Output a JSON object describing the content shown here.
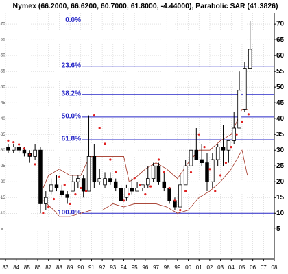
{
  "chart_data": {
    "type": "candlestick",
    "title": "Nymex (66.2000, 66.6200, 60.7000, 61.8000, -4.44000), Parabolic SAR (41.3826)",
    "x": [
      1983.25,
      1983.75,
      1984.25,
      1984.75,
      1985.25,
      1985.75,
      1986.25,
      1986.75,
      1987.25,
      1987.75,
      1988.25,
      1988.75,
      1989.25,
      1989.75,
      1990.25,
      1990.75,
      1991.25,
      1991.75,
      1992.25,
      1992.75,
      1993.25,
      1993.75,
      1994.25,
      1994.75,
      1995.25,
      1995.75,
      1996.25,
      1996.75,
      1997.25,
      1997.75,
      1998.25,
      1998.75,
      1999.25,
      1999.75,
      2000.25,
      2000.75,
      2001.25,
      2001.75,
      2002.25,
      2002.75,
      2003.25,
      2003.75,
      2004.25,
      2004.75,
      2005.25,
      2005.75
    ],
    "open": [
      31,
      30,
      31,
      30,
      29,
      28,
      30,
      13,
      17,
      19,
      17,
      16,
      17,
      20,
      21,
      17,
      28,
      20,
      19,
      21,
      20,
      18,
      15,
      18,
      17,
      18,
      19,
      21,
      25,
      20,
      18,
      14,
      12,
      19,
      25,
      30,
      27,
      26,
      20,
      27,
      31,
      30,
      33,
      37,
      43,
      56
    ],
    "high": [
      32,
      32,
      31.5,
      31,
      30,
      32,
      31,
      17,
      21,
      22,
      19,
      17,
      22,
      22,
      22,
      41,
      32,
      24,
      23,
      23,
      21,
      19,
      19,
      21,
      20,
      19,
      25,
      26,
      26,
      23,
      18,
      15,
      22,
      27,
      34,
      37,
      32,
      29,
      29,
      32,
      38,
      33,
      42,
      55,
      58,
      71
    ],
    "low": [
      29,
      29,
      29,
      28,
      26,
      27,
      10,
      11,
      16,
      17,
      15,
      13,
      17,
      18,
      15,
      17,
      18,
      19,
      18,
      19,
      17,
      14,
      14,
      16,
      17,
      17,
      18,
      20,
      19,
      17,
      13,
      11,
      12,
      19,
      24,
      27,
      25,
      17,
      18,
      25,
      25,
      26,
      32,
      37,
      42,
      56
    ],
    "close": [
      30,
      31,
      30,
      29,
      28,
      30,
      13,
      15,
      19,
      18,
      16,
      15,
      20,
      21,
      17,
      28,
      20,
      21,
      21,
      20,
      18,
      14,
      18,
      17,
      18,
      19,
      21,
      25,
      20,
      18,
      14,
      12,
      19,
      25,
      30,
      27,
      26,
      20,
      27,
      31,
      30,
      33,
      37,
      49,
      56,
      62
    ],
    "candle_color": "#000000",
    "sar": {
      "name": "Parabolic SAR",
      "color": "#e02020",
      "x": [
        1983.25,
        1983.75,
        1984.25,
        1984.75,
        1985.25,
        1985.75,
        1986.5,
        1987.0,
        1987.5,
        1988.0,
        1988.5,
        1989.0,
        1989.5,
        1990.0,
        1990.5,
        1991.25,
        1991.75,
        1992.25,
        1992.75,
        1993.25,
        1994.0,
        1994.5,
        1995.0,
        1995.5,
        1996.0,
        1996.5,
        1997.25,
        1997.75,
        1998.25,
        1998.75,
        1999.25,
        1999.75,
        2000.25,
        2001.0,
        2001.5,
        2002.0,
        2002.5,
        2003.0,
        2003.5,
        2004.0,
        2004.5,
        2005.0,
        2005.6
      ],
      "values": [
        33,
        32.5,
        31.8,
        30.5,
        28.5,
        25.5,
        10,
        12,
        14.5,
        21.5,
        19,
        13,
        16,
        18,
        17,
        41,
        37,
        32,
        27,
        23,
        14,
        16,
        21,
        19,
        16,
        18.5,
        27,
        23,
        18,
        14,
        11,
        17,
        23,
        35,
        31,
        24,
        17,
        22,
        26,
        31,
        35,
        39,
        41.3826
      ]
    },
    "bands": [
      {
        "color": "#a03020",
        "x": [
          1986.5,
          1987,
          1988,
          1989,
          1990,
          1990.7,
          1991,
          1992,
          1993,
          1994,
          1994.5,
          1995,
          1996,
          1997,
          1998,
          1999,
          2000,
          2001,
          2002,
          2003,
          2004,
          2005,
          2005.5
        ],
        "values": [
          18,
          22,
          24,
          22,
          22,
          27,
          28,
          28,
          28,
          28,
          20,
          21,
          24,
          26,
          24,
          21,
          26,
          30,
          30,
          33,
          35,
          43,
          43
        ]
      },
      {
        "color": "#a03020",
        "x": [
          1986.5,
          1987.5,
          1988,
          1989,
          1990,
          1991,
          1992,
          1993,
          1994,
          1995,
          1996,
          1997,
          1998,
          1999,
          2000,
          2001,
          2002,
          2003,
          2004,
          2005,
          2005.5
        ],
        "values": [
          14,
          11,
          9,
          9,
          10,
          11,
          11,
          13,
          12,
          13,
          13,
          13,
          12,
          10,
          11,
          15,
          17,
          20,
          24,
          30,
          22
        ]
      }
    ],
    "fib_levels": [
      {
        "label": "0.0%",
        "value": 71
      },
      {
        "label": "23.6%",
        "value": 56.6
      },
      {
        "label": "38.2%",
        "value": 47.7
      },
      {
        "label": "50.0%",
        "value": 40.5
      },
      {
        "label": "61.8%",
        "value": 33.3
      },
      {
        "label": "100.0%",
        "value": 10
      }
    ],
    "fib_color": "#2828c8",
    "xlim": [
      1983,
      2008
    ],
    "xticks": [
      {
        "value": 1983,
        "label": "83"
      },
      {
        "value": 1984,
        "label": "84"
      },
      {
        "value": 1985,
        "label": "85"
      },
      {
        "value": 1986,
        "label": "86"
      },
      {
        "value": 1987,
        "label": "87"
      },
      {
        "value": 1988,
        "label": "88"
      },
      {
        "value": 1989,
        "label": "89"
      },
      {
        "value": 1990,
        "label": "90"
      },
      {
        "value": 1991,
        "label": "91"
      },
      {
        "value": 1992,
        "label": "92"
      },
      {
        "value": 1993,
        "label": "93"
      },
      {
        "value": 1994,
        "label": "94"
      },
      {
        "value": 1995,
        "label": "95"
      },
      {
        "value": 1996,
        "label": "96"
      },
      {
        "value": 1997,
        "label": "97"
      },
      {
        "value": 1998,
        "label": "98"
      },
      {
        "value": 1999,
        "label": "99"
      },
      {
        "value": 2000,
        "label": "00"
      },
      {
        "value": 2001,
        "label": "01"
      },
      {
        "value": 2002,
        "label": "02"
      },
      {
        "value": 2003,
        "label": "03"
      },
      {
        "value": 2004,
        "label": "04"
      },
      {
        "value": 2005,
        "label": "05"
      },
      {
        "value": 2006,
        "label": "06"
      },
      {
        "value": 2007,
        "label": "07"
      },
      {
        "value": 2008,
        "label": "08"
      }
    ],
    "ylim": [
      -4.5,
      73.5
    ],
    "yticks": [
      5,
      10,
      15,
      20,
      25,
      30,
      35,
      40,
      45,
      50,
      55,
      60,
      65,
      70
    ],
    "grid": true
  }
}
